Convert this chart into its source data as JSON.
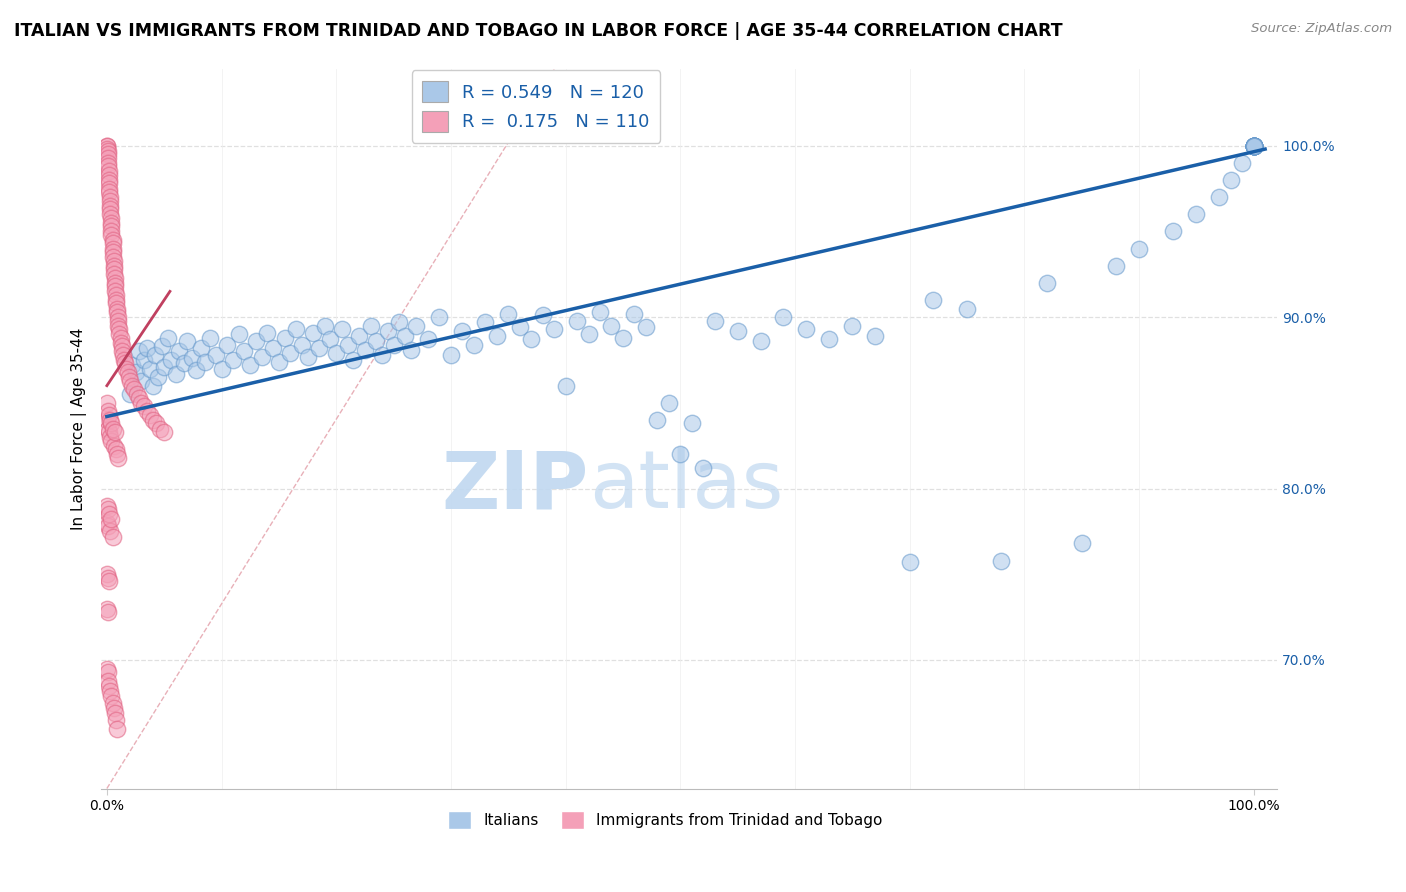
{
  "title": "ITALIAN VS IMMIGRANTS FROM TRINIDAD AND TOBAGO IN LABOR FORCE | AGE 35-44 CORRELATION CHART",
  "source": "Source: ZipAtlas.com",
  "ylabel": "In Labor Force | Age 35-44",
  "ytick_labels": [
    "70.0%",
    "80.0%",
    "90.0%",
    "100.0%"
  ],
  "ytick_values": [
    0.7,
    0.8,
    0.9,
    1.0
  ],
  "legend_labels": [
    "Italians",
    "Immigrants from Trinidad and Tobago"
  ],
  "blue_R": "0.549",
  "blue_N": "120",
  "pink_R": "0.175",
  "pink_N": "110",
  "blue_color": "#aac8e8",
  "pink_color": "#f4a0b8",
  "blue_edge_color": "#6699cc",
  "pink_edge_color": "#e06080",
  "blue_line_color": "#1a5fa8",
  "pink_line_color": "#c04060",
  "diag_color": "#e8b0b8",
  "grid_color": "#e0e0e0",
  "bg_color": "#ffffff",
  "watermark_color": "#c8ddf0",
  "xlim": [
    -0.005,
    1.02
  ],
  "ylim": [
    0.625,
    1.045
  ],
  "blue_scatter_x": [
    0.02,
    0.022,
    0.025,
    0.028,
    0.03,
    0.032,
    0.035,
    0.038,
    0.04,
    0.042,
    0.045,
    0.048,
    0.05,
    0.053,
    0.056,
    0.06,
    0.063,
    0.067,
    0.07,
    0.074,
    0.078,
    0.082,
    0.086,
    0.09,
    0.095,
    0.1,
    0.105,
    0.11,
    0.115,
    0.12,
    0.125,
    0.13,
    0.135,
    0.14,
    0.145,
    0.15,
    0.155,
    0.16,
    0.165,
    0.17,
    0.175,
    0.18,
    0.185,
    0.19,
    0.195,
    0.2,
    0.205,
    0.21,
    0.215,
    0.22,
    0.225,
    0.23,
    0.235,
    0.24,
    0.245,
    0.25,
    0.255,
    0.26,
    0.265,
    0.27,
    0.28,
    0.29,
    0.3,
    0.31,
    0.32,
    0.33,
    0.34,
    0.35,
    0.36,
    0.37,
    0.38,
    0.39,
    0.4,
    0.41,
    0.42,
    0.43,
    0.44,
    0.45,
    0.46,
    0.47,
    0.48,
    0.49,
    0.5,
    0.51,
    0.52,
    0.53,
    0.55,
    0.57,
    0.59,
    0.61,
    0.63,
    0.65,
    0.67,
    0.7,
    0.72,
    0.75,
    0.78,
    0.82,
    0.85,
    0.88,
    0.9,
    0.93,
    0.95,
    0.97,
    0.98,
    0.99,
    1.0,
    1.0,
    1.0,
    1.0,
    1.0,
    1.0,
    1.0,
    1.0,
    1.0,
    1.0,
    1.0,
    1.0,
    1.0,
    1.0
  ],
  "blue_scatter_y": [
    0.855,
    0.872,
    0.868,
    0.88,
    0.863,
    0.875,
    0.882,
    0.87,
    0.86,
    0.878,
    0.865,
    0.883,
    0.871,
    0.888,
    0.875,
    0.867,
    0.88,
    0.873,
    0.886,
    0.876,
    0.869,
    0.882,
    0.874,
    0.888,
    0.878,
    0.87,
    0.884,
    0.875,
    0.89,
    0.88,
    0.872,
    0.886,
    0.877,
    0.891,
    0.882,
    0.874,
    0.888,
    0.879,
    0.893,
    0.884,
    0.877,
    0.891,
    0.882,
    0.895,
    0.887,
    0.879,
    0.893,
    0.884,
    0.875,
    0.889,
    0.881,
    0.895,
    0.886,
    0.878,
    0.892,
    0.884,
    0.897,
    0.889,
    0.881,
    0.895,
    0.887,
    0.9,
    0.878,
    0.892,
    0.884,
    0.897,
    0.889,
    0.902,
    0.894,
    0.887,
    0.901,
    0.893,
    0.86,
    0.898,
    0.89,
    0.903,
    0.895,
    0.888,
    0.902,
    0.894,
    0.84,
    0.85,
    0.82,
    0.838,
    0.812,
    0.898,
    0.892,
    0.886,
    0.9,
    0.893,
    0.887,
    0.895,
    0.889,
    0.757,
    0.91,
    0.905,
    0.758,
    0.92,
    0.768,
    0.93,
    0.94,
    0.95,
    0.96,
    0.97,
    0.98,
    0.99,
    1.0,
    1.0,
    1.0,
    1.0,
    1.0,
    1.0,
    1.0,
    1.0,
    1.0,
    1.0,
    1.0,
    1.0,
    1.0,
    1.0
  ],
  "pink_scatter_x": [
    0.0,
    0.0,
    0.0,
    0.001,
    0.001,
    0.001,
    0.001,
    0.001,
    0.002,
    0.002,
    0.002,
    0.002,
    0.002,
    0.002,
    0.003,
    0.003,
    0.003,
    0.003,
    0.003,
    0.004,
    0.004,
    0.004,
    0.004,
    0.004,
    0.005,
    0.005,
    0.005,
    0.005,
    0.005,
    0.006,
    0.006,
    0.006,
    0.006,
    0.007,
    0.007,
    0.007,
    0.007,
    0.008,
    0.008,
    0.008,
    0.009,
    0.009,
    0.01,
    0.01,
    0.01,
    0.011,
    0.011,
    0.012,
    0.012,
    0.013,
    0.013,
    0.014,
    0.015,
    0.016,
    0.017,
    0.018,
    0.019,
    0.02,
    0.022,
    0.024,
    0.026,
    0.028,
    0.03,
    0.032,
    0.035,
    0.038,
    0.04,
    0.043,
    0.046,
    0.05,
    0.0,
    0.0,
    0.001,
    0.001,
    0.002,
    0.002,
    0.003,
    0.003,
    0.004,
    0.004,
    0.005,
    0.006,
    0.007,
    0.008,
    0.009,
    0.01,
    0.0,
    0.0,
    0.001,
    0.001,
    0.002,
    0.003,
    0.004,
    0.005,
    0.0,
    0.0,
    0.001,
    0.001,
    0.002,
    0.0,
    0.001,
    0.001,
    0.002,
    0.003,
    0.004,
    0.005,
    0.006,
    0.007,
    0.008,
    0.009
  ],
  "pink_scatter_y": [
    1.0,
    1.0,
    0.998,
    0.997,
    0.995,
    0.993,
    0.99,
    0.988,
    0.985,
    0.983,
    0.98,
    0.978,
    0.975,
    0.973,
    0.97,
    0.968,
    0.965,
    0.963,
    0.96,
    0.958,
    0.955,
    0.953,
    0.95,
    0.948,
    0.945,
    0.943,
    0.94,
    0.938,
    0.935,
    0.933,
    0.93,
    0.928,
    0.925,
    0.923,
    0.92,
    0.918,
    0.915,
    0.913,
    0.91,
    0.908,
    0.905,
    0.903,
    0.9,
    0.898,
    0.895,
    0.893,
    0.89,
    0.888,
    0.885,
    0.883,
    0.88,
    0.878,
    0.875,
    0.873,
    0.87,
    0.868,
    0.865,
    0.863,
    0.86,
    0.858,
    0.855,
    0.853,
    0.85,
    0.848,
    0.845,
    0.843,
    0.84,
    0.838,
    0.835,
    0.833,
    0.85,
    0.84,
    0.845,
    0.835,
    0.843,
    0.833,
    0.84,
    0.83,
    0.838,
    0.828,
    0.835,
    0.825,
    0.833,
    0.823,
    0.82,
    0.818,
    0.79,
    0.78,
    0.788,
    0.778,
    0.785,
    0.775,
    0.782,
    0.772,
    0.75,
    0.73,
    0.748,
    0.728,
    0.746,
    0.695,
    0.693,
    0.688,
    0.685,
    0.682,
    0.679,
    0.675,
    0.672,
    0.669,
    0.665,
    0.66
  ],
  "blue_line_x": [
    0.0,
    1.01
  ],
  "blue_line_y": [
    0.842,
    0.998
  ],
  "pink_line_x": [
    0.0,
    0.055
  ],
  "pink_line_y": [
    0.86,
    0.915
  ],
  "diag_line_x": [
    0.0,
    0.39
  ],
  "diag_line_y": [
    0.625,
    1.045
  ]
}
